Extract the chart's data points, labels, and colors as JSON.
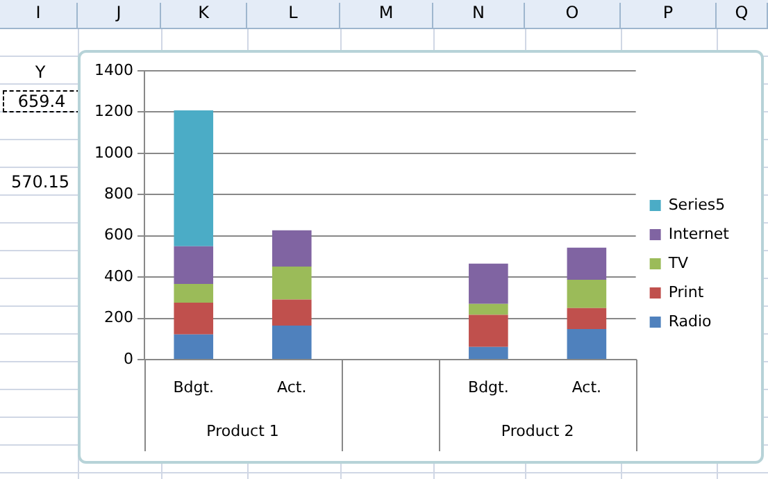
{
  "chart_data": {
    "type": "bar",
    "stacked": true,
    "categories": [
      "Bdgt.",
      "Act.",
      null,
      "Bdgt.",
      "Act."
    ],
    "series": [
      {
        "name": "Radio",
        "color": "#4f81bd",
        "values": [
          122,
          165,
          null,
          61,
          148
        ]
      },
      {
        "name": "Print",
        "color": "#c0504d",
        "values": [
          154,
          126,
          null,
          156,
          102
        ]
      },
      {
        "name": "TV",
        "color": "#9bbb59",
        "values": [
          91,
          160,
          null,
          53,
          137
        ]
      },
      {
        "name": "Internet",
        "color": "#8064a2",
        "values": [
          182,
          176,
          null,
          195,
          156
        ]
      },
      {
        "name": "Series5",
        "color": "#4bacc6",
        "values": [
          659,
          null,
          null,
          null,
          null
        ]
      }
    ],
    "ylim": [
      0,
      1400
    ],
    "yticks": [
      0,
      200,
      400,
      600,
      800,
      1000,
      1200,
      1400
    ],
    "grid": "y",
    "legend": "right",
    "annotations": [
      "Product 1",
      "Product 2",
      "I",
      "J",
      "K",
      "L",
      "M",
      "N",
      "O",
      "P",
      "Q",
      "Y",
      "659.4",
      "570.15"
    ]
  }
}
